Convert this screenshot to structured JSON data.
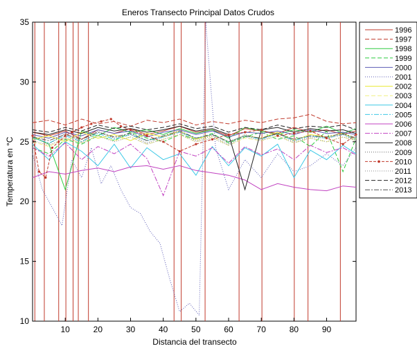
{
  "chart_data": {
    "type": "line",
    "title": "Eneros Transecto Principal Datos Crudos",
    "xlabel": "Distancia del transecto",
    "ylabel": "Temperatura en °C",
    "xlim": [
      0,
      99
    ],
    "ylim": [
      10,
      35
    ],
    "xticks": [
      10,
      20,
      30,
      40,
      50,
      60,
      70,
      80,
      90
    ],
    "yticks": [
      10,
      15,
      20,
      25,
      30,
      35
    ],
    "grid": false,
    "legend_position": "right, outside plot",
    "vertical_lines": {
      "color": "#c0392b",
      "x": [
        0.7,
        3.6,
        8.0,
        10.2,
        12.4,
        14.0,
        17.1,
        43.3,
        45.5,
        52.8,
        63.2,
        70.2,
        80.1,
        84.3,
        94.2
      ],
      "note": "red vertical lines spanning the full y range"
    },
    "series": [
      {
        "name": "1996",
        "color": "#c0392b",
        "dash": "",
        "x": [
          0,
          5,
          10,
          15,
          20,
          25,
          30,
          35,
          40,
          45,
          50,
          55,
          60,
          65,
          70,
          75,
          80,
          85,
          90,
          95,
          99
        ],
        "values": [
          25.8,
          25.5,
          25.9,
          25.2,
          26.0,
          25.7,
          26.1,
          25.6,
          25.9,
          26.3,
          25.8,
          26.0,
          25.5,
          26.1,
          25.9,
          25.7,
          26.2,
          25.8,
          26.0,
          25.6,
          25.9
        ]
      },
      {
        "name": "1997",
        "color": "#c0392b",
        "dash": "6,3",
        "x": [
          0,
          5,
          10,
          15,
          20,
          25,
          30,
          35,
          40,
          45,
          50,
          55,
          60,
          65,
          70,
          75,
          80,
          85,
          90,
          95,
          99
        ],
        "values": [
          26.6,
          26.8,
          26.4,
          26.9,
          26.5,
          26.7,
          26.3,
          26.8,
          26.6,
          26.9,
          26.4,
          26.7,
          26.5,
          26.8,
          26.6,
          26.9,
          27.0,
          27.3,
          26.7,
          26.5,
          26.6
        ]
      },
      {
        "name": "1998",
        "color": "#2ecc40",
        "dash": "",
        "x": [
          0,
          5,
          10,
          15,
          20,
          25,
          30,
          35,
          40,
          45,
          50,
          55,
          60,
          65,
          70,
          75,
          80,
          85,
          90,
          95,
          99
        ],
        "values": [
          25.4,
          24.8,
          21.0,
          25.9,
          25.5,
          26.2,
          25.8,
          26.0,
          25.6,
          26.1,
          25.7,
          26.0,
          25.3,
          26.2,
          25.9,
          25.6,
          26.0,
          25.8,
          26.3,
          25.7,
          26.1
        ]
      },
      {
        "name": "1999",
        "color": "#2ecc40",
        "dash": "6,3",
        "x": [
          0,
          5,
          10,
          15,
          20,
          25,
          30,
          35,
          40,
          45,
          50,
          55,
          60,
          65,
          70,
          75,
          80,
          85,
          90,
          95,
          99
        ],
        "values": [
          24.5,
          24.0,
          25.2,
          24.8,
          25.5,
          25.1,
          25.8,
          25.3,
          25.0,
          25.6,
          25.2,
          25.7,
          24.9,
          25.4,
          25.8,
          25.2,
          25.5,
          24.6,
          25.9,
          22.5,
          25.3
        ]
      },
      {
        "name": "2000",
        "color": "#5b5bb5",
        "dash": "",
        "x": [
          0,
          5,
          10,
          15,
          20,
          25,
          30,
          35,
          40,
          45,
          50,
          55,
          60,
          65,
          70,
          75,
          80,
          85,
          90,
          95,
          99
        ],
        "values": [
          25.6,
          25.3,
          25.8,
          25.5,
          26.0,
          25.7,
          25.9,
          25.4,
          25.8,
          26.0,
          25.6,
          25.9,
          25.4,
          25.8,
          25.7,
          25.9,
          25.6,
          26.0,
          25.7,
          25.8,
          25.6
        ]
      },
      {
        "name": "2001",
        "color": "#5b5bb5",
        "dash": "1,2",
        "x": [
          0,
          3,
          6,
          9,
          12,
          15,
          18,
          21,
          24,
          27,
          30,
          33,
          36,
          39,
          42,
          45,
          48,
          51,
          53,
          56,
          60,
          65,
          70,
          75,
          80,
          85,
          90,
          95,
          99
        ],
        "values": [
          24.0,
          21.0,
          19.5,
          18.0,
          23.5,
          22.0,
          24.5,
          21.5,
          23.0,
          21.0,
          19.5,
          19.0,
          17.5,
          16.5,
          13.5,
          10.8,
          11.5,
          10.5,
          35.0,
          24.5,
          21.0,
          23.5,
          22.0,
          24.0,
          22.5,
          23.0,
          24.0,
          23.0,
          24.5
        ]
      },
      {
        "name": "2002",
        "color": "#e8e832",
        "dash": "",
        "x": [
          0,
          5,
          10,
          15,
          20,
          25,
          30,
          35,
          40,
          45,
          50,
          55,
          60,
          65,
          70,
          75,
          80,
          85,
          90,
          95,
          99
        ],
        "values": [
          25.2,
          25.5,
          25.0,
          25.8,
          25.3,
          25.6,
          25.1,
          25.7,
          25.4,
          25.9,
          25.2,
          25.6,
          25.0,
          25.5,
          25.3,
          25.8,
          25.1,
          25.6,
          25.4,
          25.7,
          25.2
        ]
      },
      {
        "name": "2003",
        "color": "#f0f080",
        "dash": "6,3",
        "x": [
          0,
          5,
          10,
          15,
          20,
          25,
          30,
          35,
          40,
          45,
          50,
          55,
          60,
          65,
          70,
          75,
          80,
          85,
          90,
          95,
          99
        ],
        "values": [
          25.0,
          24.6,
          25.3,
          24.9,
          25.5,
          25.1,
          25.4,
          24.8,
          25.2,
          25.6,
          25.0,
          25.4,
          24.7,
          25.3,
          25.1,
          25.5,
          24.9,
          25.3,
          25.0,
          25.4,
          25.1
        ]
      },
      {
        "name": "2004",
        "color": "#3cc8e6",
        "dash": "",
        "x": [
          0,
          5,
          10,
          15,
          20,
          25,
          30,
          35,
          40,
          45,
          50,
          55,
          60,
          65,
          70,
          75,
          80,
          85,
          90,
          95,
          99
        ],
        "values": [
          24.8,
          23.5,
          25.0,
          24.2,
          23.0,
          24.8,
          22.8,
          24.5,
          23.5,
          24.0,
          22.2,
          24.6,
          23.0,
          24.5,
          23.8,
          24.8,
          22.0,
          24.3,
          23.5,
          24.7,
          24.0
        ]
      },
      {
        "name": "2005",
        "color": "#3cc8e6",
        "dash": "7,2,2,2",
        "x": [
          0,
          5,
          10,
          15,
          20,
          25,
          30,
          35,
          40,
          45,
          50,
          55,
          60,
          65,
          70,
          75,
          80,
          85,
          90,
          95,
          99
        ],
        "values": [
          25.3,
          24.9,
          25.5,
          25.0,
          25.7,
          25.2,
          25.6,
          25.1,
          25.4,
          25.8,
          25.3,
          25.6,
          25.0,
          25.5,
          25.2,
          25.7,
          25.1,
          25.5,
          25.3,
          25.6,
          25.2
        ]
      },
      {
        "name": "2006",
        "color": "#c040c0",
        "dash": "",
        "x": [
          0,
          5,
          10,
          15,
          20,
          25,
          30,
          35,
          40,
          45,
          50,
          55,
          60,
          65,
          70,
          75,
          80,
          85,
          90,
          95,
          99
        ],
        "values": [
          22.0,
          22.5,
          22.3,
          22.6,
          22.8,
          22.5,
          22.9,
          23.0,
          22.7,
          23.0,
          22.6,
          22.4,
          22.2,
          21.8,
          21.0,
          21.5,
          21.2,
          21.0,
          20.9,
          21.3,
          21.2
        ]
      },
      {
        "name": "2007",
        "color": "#c040c0",
        "dash": "7,2,2,2",
        "x": [
          0,
          5,
          10,
          15,
          20,
          25,
          30,
          35,
          40,
          45,
          50,
          55,
          60,
          65,
          70,
          75,
          80,
          85,
          90,
          95,
          99
        ],
        "values": [
          24.5,
          23.8,
          24.9,
          23.5,
          24.6,
          24.0,
          24.8,
          23.6,
          20.5,
          24.2,
          23.8,
          24.5,
          23.2,
          24.6,
          23.9,
          24.4,
          23.5,
          24.7,
          24.1,
          24.5,
          23.9
        ]
      },
      {
        "name": "2008",
        "color": "#222222",
        "dash": "",
        "x": [
          0,
          5,
          10,
          15,
          20,
          25,
          30,
          35,
          40,
          45,
          50,
          55,
          60,
          65,
          70,
          75,
          80,
          85,
          90,
          95,
          99
        ],
        "values": [
          25.8,
          25.6,
          26.0,
          25.7,
          26.2,
          25.9,
          26.1,
          25.8,
          26.0,
          26.3,
          25.9,
          26.1,
          25.6,
          21.0,
          26.0,
          26.2,
          25.8,
          26.1,
          25.9,
          26.0,
          25.7
        ]
      },
      {
        "name": "2009",
        "color": "#666666",
        "dash": "1,2",
        "x": [
          0,
          5,
          10,
          15,
          20,
          25,
          30,
          35,
          40,
          45,
          50,
          55,
          60,
          65,
          70,
          75,
          80,
          85,
          90,
          95,
          99
        ],
        "values": [
          25.5,
          24.8,
          25.7,
          25.0,
          25.9,
          25.3,
          25.6,
          24.9,
          25.4,
          25.8,
          25.1,
          25.5,
          24.8,
          25.6,
          25.2,
          25.7,
          25.0,
          25.4,
          25.3,
          25.6,
          25.1
        ]
      },
      {
        "name": "2010",
        "color": "#c0392b",
        "dash": "4,2",
        "markers": true,
        "x": [
          0,
          2,
          4,
          6,
          8,
          10,
          12,
          15,
          18,
          21,
          24,
          27,
          30,
          35,
          40,
          45,
          50,
          55,
          60,
          65,
          70,
          75,
          80,
          85,
          90,
          95,
          99
        ],
        "values": [
          25.5,
          22.5,
          22.0,
          24.5,
          25.0,
          25.5,
          25.8,
          26.2,
          26.5,
          26.7,
          26.9,
          26.3,
          26.0,
          25.5,
          25.0,
          24.2,
          24.8,
          25.2,
          25.6,
          25.8,
          26.0,
          25.5,
          25.7,
          25.9,
          25.3,
          24.8,
          25.6
        ]
      },
      {
        "name": "2011",
        "color": "#888888",
        "dash": "1,2",
        "x": [
          0,
          5,
          10,
          15,
          20,
          25,
          30,
          35,
          40,
          45,
          50,
          55,
          60,
          65,
          70,
          75,
          80,
          85,
          90,
          95,
          99
        ],
        "values": [
          25.1,
          24.7,
          25.3,
          24.9,
          25.5,
          25.0,
          25.4,
          24.8,
          25.2,
          25.6,
          25.0,
          25.3,
          24.7,
          25.4,
          25.1,
          25.5,
          24.9,
          25.3,
          25.0,
          25.4,
          25.1
        ]
      },
      {
        "name": "2012",
        "color": "#222222",
        "dash": "6,3",
        "x": [
          0,
          5,
          10,
          15,
          20,
          25,
          30,
          35,
          40,
          45,
          50,
          55,
          60,
          65,
          70,
          75,
          80,
          85,
          90,
          95,
          99
        ],
        "values": [
          26.0,
          25.8,
          26.2,
          25.9,
          26.4,
          26.1,
          26.3,
          26.0,
          26.2,
          26.5,
          26.1,
          26.3,
          25.8,
          26.2,
          26.0,
          26.4,
          26.1,
          26.3,
          26.2,
          26.4,
          26.0
        ]
      },
      {
        "name": "2013",
        "color": "#555555",
        "dash": "7,2,2,2",
        "x": [
          0,
          5,
          10,
          15,
          20,
          25,
          30,
          35,
          40,
          45,
          50,
          55,
          60,
          65,
          70,
          75,
          80,
          85,
          90,
          95,
          99
        ],
        "values": [
          25.4,
          25.1,
          25.6,
          25.2,
          25.8,
          25.4,
          25.7,
          25.1,
          25.5,
          25.9,
          25.3,
          25.6,
          25.0,
          25.5,
          25.3,
          25.7,
          25.2,
          25.5,
          25.4,
          25.7,
          25.3
        ]
      }
    ]
  }
}
